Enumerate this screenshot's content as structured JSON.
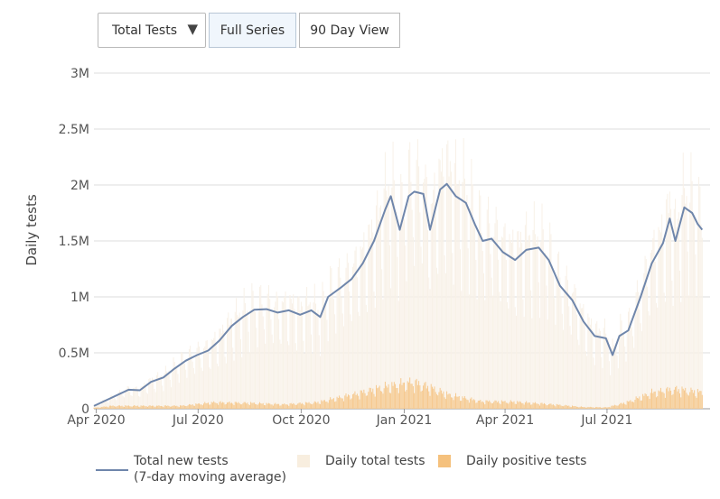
{
  "controls": {
    "metric_select": "Total Tests",
    "full_series": "Full Series",
    "ninety_day": "90 Day View"
  },
  "chart_data": {
    "type": "bar",
    "title": "",
    "xlabel": "",
    "ylabel": "Daily tests",
    "x_ticks": [
      "Apr 2020",
      "Jul 2020",
      "Oct 2020",
      "Jan 2021",
      "Apr 2021",
      "Jul 2021"
    ],
    "x_tick_dates": [
      "2020-04-01",
      "2020-07-01",
      "2020-10-01",
      "2021-01-01",
      "2021-04-01",
      "2021-07-01"
    ],
    "x_range": [
      "2020-03-30",
      "2021-10-01"
    ],
    "y_ticks": [
      "0",
      "0.5M",
      "1M",
      "1.5M",
      "2M",
      "2.5M",
      "3M"
    ],
    "ylim": [
      0,
      3000000
    ],
    "grid": true,
    "legend_position": "bottom",
    "series": [
      {
        "name": "Total new tests (7-day moving average)",
        "type": "line",
        "color": "#6f86ab",
        "points": [
          [
            "2020-03-30",
            25000
          ],
          [
            "2020-04-15",
            100000
          ],
          [
            "2020-04-30",
            170000
          ],
          [
            "2020-05-10",
            165000
          ],
          [
            "2020-05-20",
            240000
          ],
          [
            "2020-05-31",
            280000
          ],
          [
            "2020-06-10",
            360000
          ],
          [
            "2020-06-20",
            430000
          ],
          [
            "2020-06-30",
            480000
          ],
          [
            "2020-07-10",
            520000
          ],
          [
            "2020-07-20",
            610000
          ],
          [
            "2020-07-31",
            740000
          ],
          [
            "2020-08-10",
            820000
          ],
          [
            "2020-08-20",
            885000
          ],
          [
            "2020-08-31",
            890000
          ],
          [
            "2020-09-10",
            860000
          ],
          [
            "2020-09-20",
            880000
          ],
          [
            "2020-09-30",
            840000
          ],
          [
            "2020-10-10",
            880000
          ],
          [
            "2020-10-18",
            820000
          ],
          [
            "2020-10-25",
            1000000
          ],
          [
            "2020-11-05",
            1080000
          ],
          [
            "2020-11-15",
            1160000
          ],
          [
            "2020-11-25",
            1300000
          ],
          [
            "2020-12-05",
            1500000
          ],
          [
            "2020-12-15",
            1780000
          ],
          [
            "2020-12-20",
            1900000
          ],
          [
            "2020-12-28",
            1600000
          ],
          [
            "2021-01-05",
            1900000
          ],
          [
            "2021-01-10",
            1940000
          ],
          [
            "2021-01-18",
            1920000
          ],
          [
            "2021-01-24",
            1600000
          ],
          [
            "2021-02-02",
            1960000
          ],
          [
            "2021-02-08",
            2010000
          ],
          [
            "2021-02-16",
            1900000
          ],
          [
            "2021-02-25",
            1840000
          ],
          [
            "2021-03-05",
            1650000
          ],
          [
            "2021-03-12",
            1500000
          ],
          [
            "2021-03-20",
            1520000
          ],
          [
            "2021-03-30",
            1400000
          ],
          [
            "2021-04-10",
            1330000
          ],
          [
            "2021-04-20",
            1420000
          ],
          [
            "2021-05-01",
            1440000
          ],
          [
            "2021-05-10",
            1330000
          ],
          [
            "2021-05-20",
            1100000
          ],
          [
            "2021-05-31",
            970000
          ],
          [
            "2021-06-10",
            780000
          ],
          [
            "2021-06-20",
            650000
          ],
          [
            "2021-06-30",
            630000
          ],
          [
            "2021-07-06",
            480000
          ],
          [
            "2021-07-12",
            650000
          ],
          [
            "2021-07-20",
            700000
          ],
          [
            "2021-07-31",
            1000000
          ],
          [
            "2021-08-10",
            1300000
          ],
          [
            "2021-08-20",
            1480000
          ],
          [
            "2021-08-26",
            1700000
          ],
          [
            "2021-08-31",
            1500000
          ],
          [
            "2021-09-08",
            1800000
          ],
          [
            "2021-09-15",
            1750000
          ],
          [
            "2021-09-20",
            1650000
          ],
          [
            "2021-09-24",
            1600000
          ]
        ]
      },
      {
        "name": "Daily total tests",
        "type": "bar",
        "color": "#f8f1e7",
        "note": "daily bars fluctuate around the moving average"
      },
      {
        "name": "Daily positive tests",
        "type": "bar",
        "color": "#f5c17d",
        "points": [
          [
            "2020-03-30",
            8000
          ],
          [
            "2020-04-15",
            25000
          ],
          [
            "2020-05-15",
            25000
          ],
          [
            "2020-06-15",
            25000
          ],
          [
            "2020-07-15",
            55000
          ],
          [
            "2020-08-15",
            50000
          ],
          [
            "2020-09-15",
            38000
          ],
          [
            "2020-10-15",
            55000
          ],
          [
            "2020-11-15",
            120000
          ],
          [
            "2020-12-15",
            190000
          ],
          [
            "2021-01-08",
            230000
          ],
          [
            "2021-01-20",
            200000
          ],
          [
            "2021-02-10",
            120000
          ],
          [
            "2021-03-10",
            65000
          ],
          [
            "2021-04-10",
            60000
          ],
          [
            "2021-05-10",
            40000
          ],
          [
            "2021-06-10",
            15000
          ],
          [
            "2021-07-01",
            12000
          ],
          [
            "2021-07-20",
            60000
          ],
          [
            "2021-08-10",
            140000
          ],
          [
            "2021-08-31",
            170000
          ],
          [
            "2021-09-24",
            140000
          ]
        ]
      }
    ]
  },
  "legend": {
    "line_label_1": "Total new tests",
    "line_label_2": "(7-day moving average)",
    "total_label": "Daily total tests",
    "positive_label": "Daily positive tests"
  }
}
